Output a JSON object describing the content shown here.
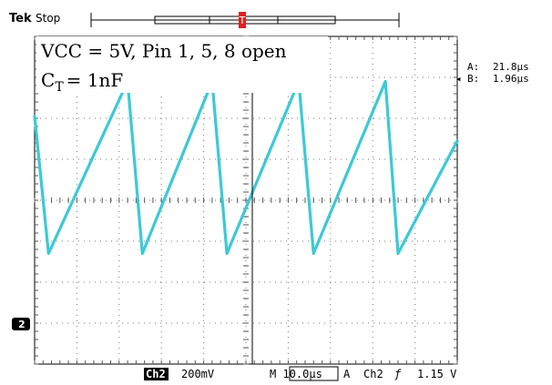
{
  "header": {
    "brand": "Tek",
    "run_state": "Stop"
  },
  "annotations": {
    "line1": "VCC = 5V, Pin 1, 5, 8 open",
    "line2_base": "C",
    "line2_sub": "T",
    "line2_rest": "= 1nF"
  },
  "cursor_readout": {
    "a_label": "A:",
    "a_value": "21.8μs",
    "b_label": "B:",
    "b_value": "1.96μs"
  },
  "channel_marker": "2",
  "status_bar": {
    "channel": "Ch2",
    "volts_per_div": "200mV",
    "time_per_div": "M 10.0μs",
    "trigger_mode": "A",
    "trigger_source": "Ch2",
    "trigger_slope": "ƒ",
    "trigger_level": "1.15 V"
  },
  "colors": {
    "trace": "#3cc9d6",
    "grid": "#7a7a7a",
    "cursor": "#000000",
    "trigger_marker": "#e02020"
  },
  "chart_data": {
    "type": "line",
    "title": "",
    "xlabel": "",
    "ylabel": "",
    "grid": true,
    "divisions": {
      "x": 10,
      "y": 8
    },
    "xlim_div": [
      0,
      10
    ],
    "ylim_div": [
      0,
      8
    ],
    "series": [
      {
        "points_div": [
          [
            0,
            6.05
          ],
          [
            0.33,
            2.7
          ],
          [
            2.2,
            6.9
          ],
          [
            2.55,
            2.7
          ],
          [
            4.2,
            6.9
          ],
          [
            4.55,
            2.7
          ],
          [
            6.25,
            6.9
          ],
          [
            6.6,
            2.7
          ],
          [
            8.3,
            6.9
          ],
          [
            8.6,
            2.7
          ],
          [
            10,
            5.45
          ]
        ]
      }
    ]
  }
}
